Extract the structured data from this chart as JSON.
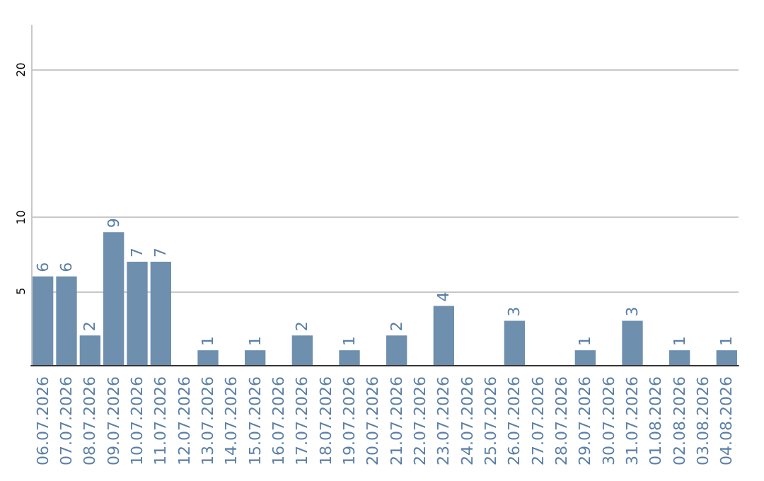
{
  "chart_data": {
    "type": "bar",
    "categories": [
      "06.07.2026",
      "07.07.2026",
      "08.07.2026",
      "09.07.2026",
      "10.07.2026",
      "11.07.2026",
      "12.07.2026",
      "13.07.2026",
      "14.07.2026",
      "15.07.2026",
      "16.07.2026",
      "17.07.2026",
      "18.07.2026",
      "19.07.2026",
      "20.07.2026",
      "21.07.2026",
      "22.07.2026",
      "23.07.2026",
      "24.07.2026",
      "25.07.2026",
      "26.07.2026",
      "27.07.2026",
      "28.07.2026",
      "29.07.2026",
      "30.07.2026",
      "31.07.2026",
      "01.08.2026",
      "02.08.2026",
      "03.08.2026",
      "04.08.2026"
    ],
    "values": [
      6,
      6,
      2,
      9,
      7,
      7,
      0,
      1,
      0,
      1,
      0,
      2,
      0,
      1,
      0,
      2,
      0,
      4,
      0,
      0,
      3,
      0,
      0,
      1,
      0,
      3,
      0,
      1,
      0,
      1
    ],
    "value_labels": [
      "6",
      "6",
      "2",
      "9",
      "7",
      "7",
      null,
      "1",
      null,
      "1",
      null,
      "2",
      null,
      "1",
      null,
      "2",
      null,
      "4",
      null,
      null,
      "3",
      null,
      null,
      "1",
      null,
      "3",
      null,
      "1",
      null,
      "1"
    ],
    "color": "#6e8fae",
    "ylim": [
      0,
      23
    ],
    "yticks": [
      5,
      10,
      20
    ],
    "grid": "y"
  }
}
